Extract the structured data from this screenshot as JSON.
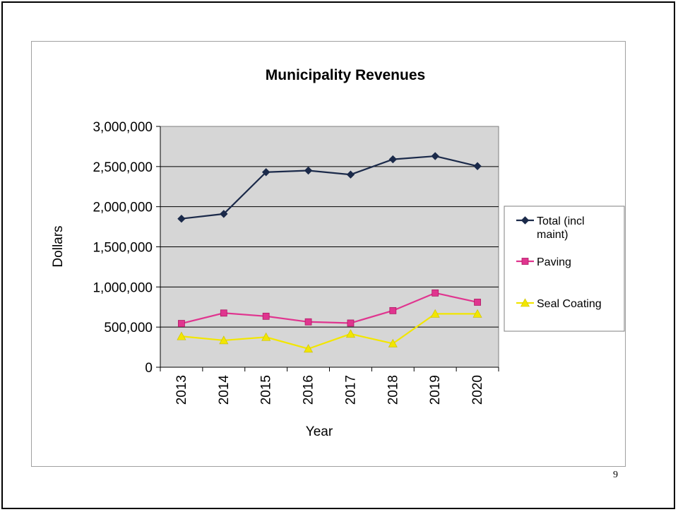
{
  "page_number": "9",
  "chart_data": {
    "type": "line",
    "title": "Municipality Revenues",
    "xlabel": "Year",
    "ylabel": "Dollars",
    "categories": [
      "2013",
      "2014",
      "2015",
      "2016",
      "2017",
      "2018",
      "2019",
      "2020"
    ],
    "ylim": [
      0,
      3000000
    ],
    "yticks": [
      0,
      500000,
      1000000,
      1500000,
      2000000,
      2500000,
      3000000
    ],
    "ytick_labels": [
      "0",
      "500,000",
      "1,000,000",
      "1,500,000",
      "2,000,000",
      "2,500,000",
      "3,000,000"
    ],
    "grid": true,
    "legend_position": "right",
    "series": [
      {
        "name": "Total (incl maint)",
        "color": "#1b2a4a",
        "marker": "diamond",
        "values": [
          1850000,
          1910000,
          2430000,
          2450000,
          2400000,
          2590000,
          2630000,
          2505000
        ]
      },
      {
        "name": "Paving",
        "color": "#e0358f",
        "marker": "square",
        "values": [
          545000,
          675000,
          635000,
          565000,
          550000,
          705000,
          925000,
          810000
        ]
      },
      {
        "name": "Seal Coating",
        "color": "#f2e600",
        "marker": "triangle",
        "values": [
          385000,
          335000,
          375000,
          230000,
          415000,
          295000,
          665000,
          665000
        ]
      }
    ]
  }
}
